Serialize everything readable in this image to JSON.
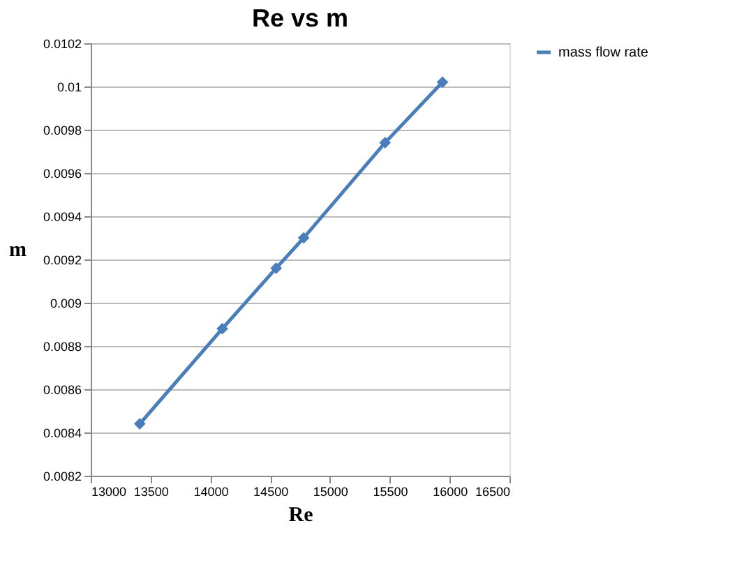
{
  "chart_data": {
    "type": "line",
    "title": "Re vs m",
    "xlabel": "Re",
    "ylabel": "m",
    "x": [
      13410,
      14100,
      14550,
      14780,
      15460,
      15940
    ],
    "series": [
      {
        "name": "mass flow rate",
        "color": "#4a7ebb",
        "values": [
          0.00844,
          0.00888,
          0.00916,
          0.0093,
          0.00974,
          0.01002
        ]
      }
    ],
    "xlim": [
      13000,
      16500
    ],
    "xticks": [
      13000,
      13500,
      14000,
      14500,
      15000,
      15500,
      16000,
      16500
    ],
    "ylim": [
      0.0082,
      0.0102
    ],
    "yticks": [
      0.0082,
      0.0084,
      0.0086,
      0.0088,
      0.009,
      0.0092,
      0.0094,
      0.0096,
      0.0098,
      0.01,
      0.0102
    ],
    "grid": "y",
    "legend": "right",
    "marker": "diamond",
    "line_style": "solid"
  }
}
